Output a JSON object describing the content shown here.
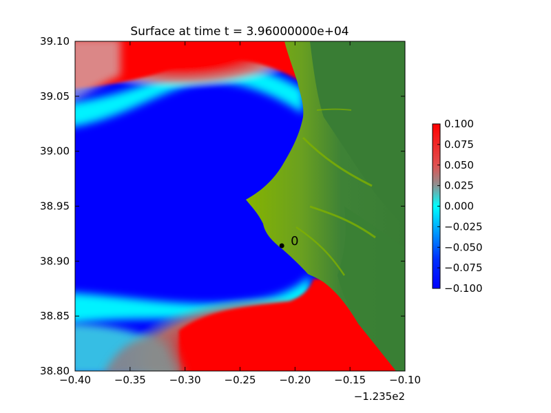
{
  "chart_data": {
    "type": "heatmap",
    "title": "Surface at time t = 3.96000000e+04",
    "xlabel": "",
    "ylabel": "",
    "x_offset_label": "−1.235e2",
    "xlim": [
      -0.4,
      -0.1
    ],
    "ylim": [
      38.8,
      39.1
    ],
    "x_ticks": [
      -0.4,
      -0.35,
      -0.3,
      -0.25,
      -0.2,
      -0.15,
      -0.1
    ],
    "x_tick_labels": [
      "−0.40",
      "−0.35",
      "−0.30",
      "−0.25",
      "−0.20",
      "−0.15",
      "−0.10"
    ],
    "y_ticks": [
      38.8,
      38.85,
      38.9,
      38.95,
      39.0,
      39.05,
      39.1
    ],
    "y_tick_labels": [
      "38.80",
      "38.85",
      "38.90",
      "38.95",
      "39.00",
      "39.05",
      "39.10"
    ],
    "colorbar": {
      "range": [
        -0.1,
        0.1
      ],
      "ticks": [
        0.1,
        0.075,
        0.05,
        0.025,
        0.0,
        -0.025,
        -0.05,
        -0.075,
        -0.1
      ],
      "tick_labels": [
        "0.100",
        "0.075",
        "0.050",
        "0.025",
        "0.000",
        "−0.025",
        "−0.050",
        "−0.075",
        "−0.100"
      ],
      "colors": [
        "#ff0000",
        "#a05a5a",
        "#00e5ff",
        "#0000ff"
      ]
    },
    "colors": {
      "positive": "#ff0000",
      "negative": "#0000ff",
      "zero": "#00ffff",
      "land_low": "#80b000",
      "land_high": "#3a7f34"
    },
    "gauges": [
      {
        "label": "0",
        "x": -0.212,
        "y": 38.914
      }
    ],
    "grid": false,
    "legend": "none"
  }
}
